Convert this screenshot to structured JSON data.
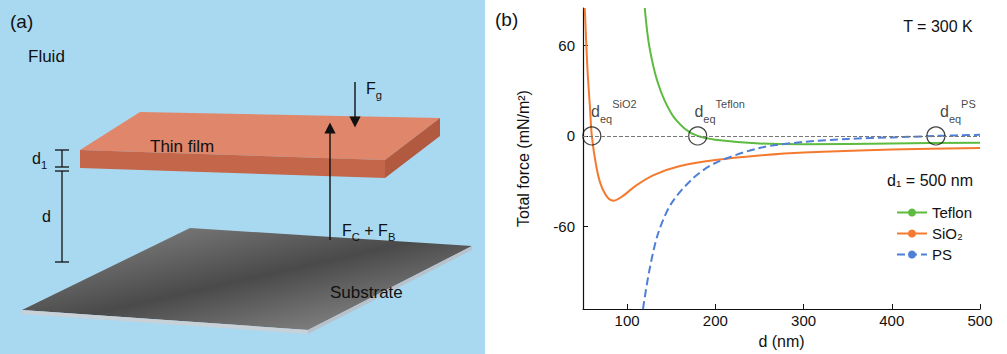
{
  "diagram": {
    "label": "(a)",
    "fluid": "Fluid",
    "thin_film": "Thin film",
    "substrate": "Substrate",
    "film_thickness": [
      {
        "text": "d",
        "sub": "1"
      }
    ],
    "gap": [
      {
        "text": "d",
        "sub": ""
      }
    ],
    "gravity": [
      {
        "text": "F",
        "sub": "g"
      }
    ],
    "upward_force": [
      {
        "text": "F",
        "sub": "C"
      },
      {
        "text": " + F",
        "sub": "B"
      }
    ]
  },
  "chart_data": {
    "type": "line",
    "panel_label": "(b)",
    "xlabel": "d (nm)",
    "ylabel": "Total force (mN/m²)",
    "xlim": [
      50,
      500
    ],
    "xticks": [
      100,
      200,
      300,
      400,
      500
    ],
    "ylim": [
      -115,
      85
    ],
    "yticks": [
      -60,
      0,
      60
    ],
    "grid": false,
    "legend": "right",
    "series": [
      {
        "name": "Teflon",
        "color": "#5dbb3f",
        "line_style": "solid",
        "x": [
          120,
          125,
          135,
          150,
          165,
          180,
          200,
          250,
          300,
          400,
          500
        ],
        "values": [
          85,
          60,
          35,
          15,
          5,
          0,
          -2.5,
          -5,
          -5.5,
          -5,
          -4.5
        ]
      },
      {
        "name": "SiO₂",
        "color": "#f47a30",
        "line_style": "solid",
        "x": [
          52,
          55,
          58,
          60,
          65,
          70,
          78,
          85,
          95,
          110,
          130,
          160,
          200,
          250,
          300,
          400,
          500
        ],
        "values": [
          85,
          45,
          18,
          0,
          -20,
          -32,
          -41,
          -43,
          -40,
          -33,
          -26,
          -20,
          -16,
          -13,
          -11,
          -9,
          -8
        ]
      },
      {
        "name": "PS",
        "color": "#4f7fd6",
        "line_style": "dashed",
        "x": [
          118,
          125,
          135,
          150,
          175,
          200,
          250,
          300,
          350,
          400,
          450,
          500
        ],
        "values": [
          -115,
          -90,
          -65,
          -45,
          -28,
          -18,
          -8,
          -4,
          -2,
          -1,
          0,
          0.8
        ]
      }
    ],
    "annotations": [
      {
        "text": "T = 300 K"
      },
      {
        "text": "d₁ = 500 nm"
      },
      {
        "type": "hline",
        "y": 0,
        "line_style": "dashed"
      },
      {
        "type": "point",
        "marker": "circle",
        "x": 60,
        "y": 0,
        "text": "d",
        "sub": "eq",
        "sup": "SiO2"
      },
      {
        "type": "point",
        "marker": "circle",
        "x": 180,
        "y": 0,
        "text": "d",
        "sub": "eq",
        "sup": "Teflon"
      },
      {
        "type": "point",
        "marker": "circle",
        "x": 450,
        "y": 0,
        "text": "d",
        "sub": "eq",
        "sup": "PS"
      }
    ]
  }
}
